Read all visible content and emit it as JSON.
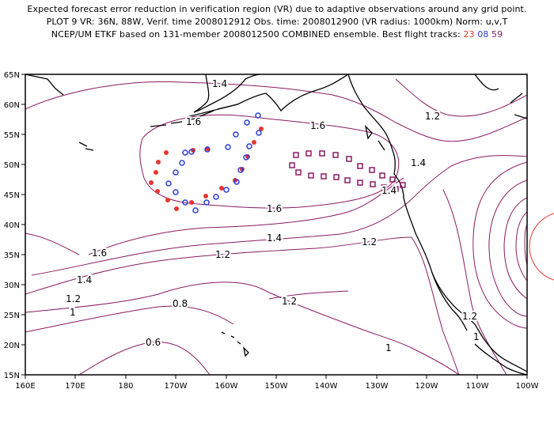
{
  "header": {
    "line1": "Expected forecast error reduction in verification region (VR) due to adaptive observations around any grid point.",
    "line2": "PLOT 9 VR: 36N, 88W, Verif. time 2008012912 Obs. time: 2008012900 (VR radius: 1000km) Norm: u,v,T",
    "line3_prefix": "NCEP/UM ETKF based on 131-member 2008012500 COMBINED ensemble.  Best flight tracks:",
    "tracks": [
      {
        "id": "23",
        "color": "#e8362e"
      },
      {
        "id": "08",
        "color": "#2a3cd8"
      },
      {
        "id": "59",
        "color": "#8a1a63"
      }
    ]
  },
  "map": {
    "lon_labels": [
      "160E",
      "170E",
      "180",
      "170W",
      "160W",
      "150W",
      "140W",
      "130W",
      "120W",
      "110W",
      "100W"
    ],
    "lat_labels": [
      "15N",
      "20N",
      "25N",
      "30N",
      "35N",
      "40N",
      "45N",
      "50N",
      "55N",
      "60N",
      "65N"
    ],
    "contour_color": "#8a1a63",
    "coast_color": "#000000",
    "vr_color": "#e8362e",
    "contour_labels": [
      "1.4",
      "1.6",
      "1.6",
      "1.6",
      "1.4",
      "1.2",
      "1.2",
      "1.4",
      "1.6",
      "1.2",
      "1.4",
      "1.2",
      "1",
      "0.8",
      "0.6",
      "1.2",
      "1",
      "1.2",
      "1",
      "1.4"
    ]
  }
}
